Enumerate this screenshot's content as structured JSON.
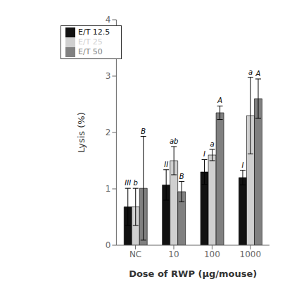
{
  "chart_data": {
    "type": "bar",
    "categories": [
      "NC",
      "10",
      "100",
      "1000"
    ],
    "series": [
      {
        "name": "E/T 12.5",
        "color": "#111111",
        "values": [
          0.68,
          1.07,
          1.3,
          1.2
        ],
        "errors": [
          0.33,
          0.27,
          0.22,
          0.13
        ],
        "labels": [
          "III",
          "II",
          "I",
          "I"
        ]
      },
      {
        "name": "E/T 25",
        "color": "#d0d0d0",
        "values": [
          0.68,
          1.5,
          1.6,
          2.3
        ],
        "errors": [
          0.33,
          0.25,
          0.1,
          0.68
        ],
        "labels": [
          "b",
          "ab",
          "a",
          "a"
        ]
      },
      {
        "name": "E/T 50",
        "color": "#808080",
        "values": [
          1.01,
          0.95,
          2.35,
          2.6
        ],
        "errors": [
          0.92,
          0.18,
          0.12,
          0.35
        ],
        "labels": [
          "B",
          "B",
          "A",
          "A"
        ]
      }
    ],
    "xlabel": "Dose of RWP (μg/mouse)",
    "ylabel": "Lysis (%)",
    "ylim": [
      0,
      4.0
    ],
    "yticks": [
      0,
      1,
      2,
      3,
      4
    ],
    "legend": "upper left",
    "grid": false
  }
}
